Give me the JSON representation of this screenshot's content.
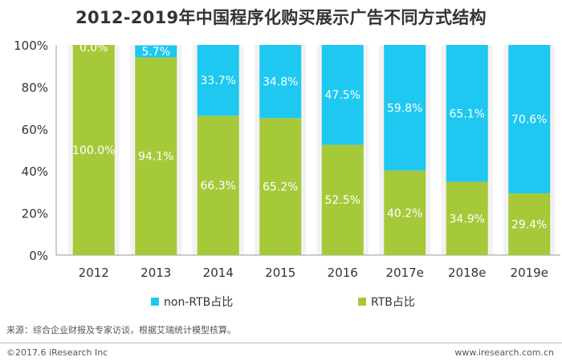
{
  "chart_data": {
    "type": "bar",
    "stacked": true,
    "title": "2012-2019年中国程序化购买展示广告不同方式结构",
    "categories": [
      "2012",
      "2013",
      "2014",
      "2015",
      "2016",
      "2017e",
      "2018e",
      "2019e"
    ],
    "series": [
      {
        "name": "RTB占比",
        "color": "#a6c93a",
        "values": [
          100.0,
          94.1,
          66.3,
          65.2,
          52.5,
          40.2,
          34.9,
          29.4
        ],
        "labels": [
          "100.0%",
          "94.1%",
          "66.3%",
          "65.2%",
          "52.5%",
          "40.2%",
          "34.9%",
          "29.4%"
        ]
      },
      {
        "name": "non-RTB占比",
        "color": "#1ec8f0",
        "values": [
          0.0,
          5.7,
          33.7,
          34.8,
          47.5,
          59.8,
          65.1,
          70.6
        ],
        "labels": [
          "0.0%",
          "5.7%",
          "33.7%",
          "34.8%",
          "47.5%",
          "59.8%",
          "65.1%",
          "70.6%"
        ]
      }
    ],
    "yticks": [
      "0%",
      "20%",
      "40%",
      "60%",
      "80%",
      "100%"
    ],
    "ylim": [
      0,
      100
    ],
    "grid": false,
    "legend_position": "bottom",
    "xlabel": "",
    "ylabel": ""
  },
  "legend": {
    "non_rtb_label": "non-RTB占比",
    "rtb_label": "RTB占比"
  },
  "source": "来源：综合企业财报及专家访谈，根据艾瑞统计模型核算。",
  "footer": {
    "left": "©2017.6 iResearch Inc",
    "right": "www.iresearch.com.cn"
  },
  "colors": {
    "rtb": "#a6c93a",
    "non_rtb": "#1ec8f0",
    "panel": "#f2f2f2"
  }
}
